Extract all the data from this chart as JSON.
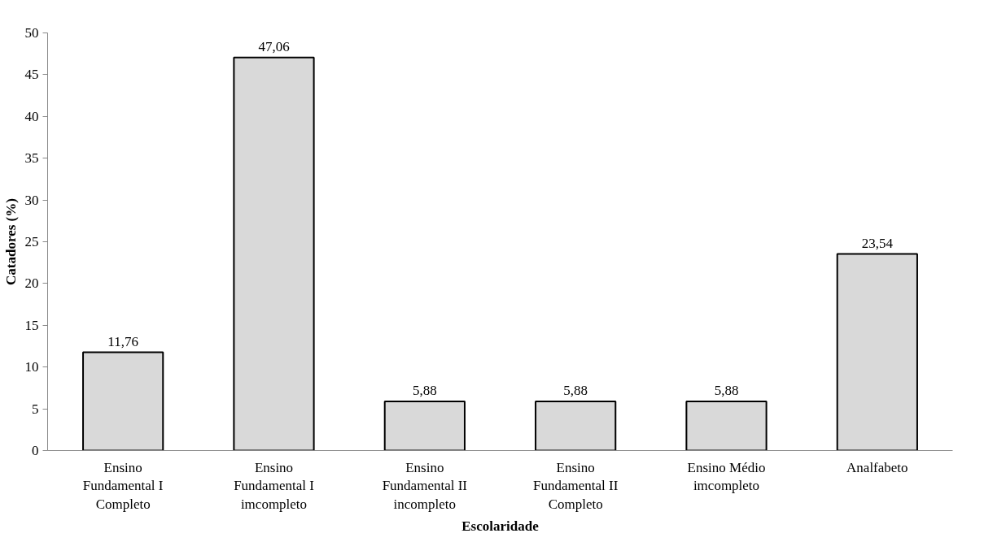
{
  "chart_data": {
    "type": "bar",
    "xlabel": "Escolaridade",
    "ylabel": "Catadores (%)",
    "categories": [
      "Ensino\nFundamental I\nCompleto",
      "Ensino\nFundamental I\nimcompleto",
      "Ensino\nFundamental II\nincompleto",
      "Ensino\nFundamental II\nCompleto",
      "Ensino Médio\nimcompleto",
      "Analfabeto"
    ],
    "values": [
      11.76,
      47.06,
      5.88,
      5.88,
      5.88,
      23.54
    ],
    "value_labels": [
      "11,76",
      "47,06",
      "5,88",
      "5,88",
      "5,88",
      "23,54"
    ],
    "color": "#d9d9d9",
    "ylim": [
      0,
      50
    ],
    "yticks": [
      0,
      5,
      10,
      15,
      20,
      25,
      30,
      35,
      40,
      45,
      50
    ],
    "grid": false
  }
}
